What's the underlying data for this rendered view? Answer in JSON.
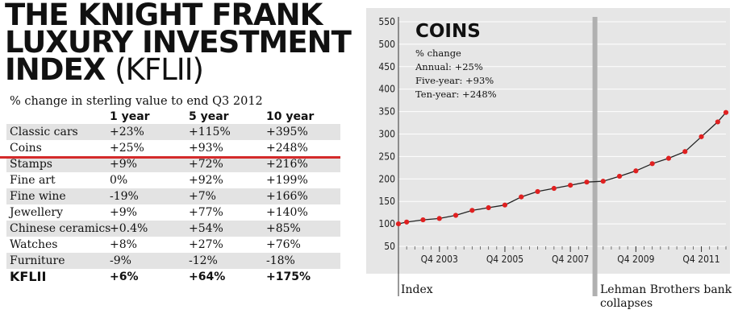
{
  "header": {
    "title_line1": "THE KNIGHT FRANK",
    "title_line2": "LUXURY INVESTMENT",
    "title_line3": "INDEX",
    "title_abbr": "(KFLII)",
    "subtitle": "% change in sterling value to end Q3 2012"
  },
  "table": {
    "columns": [
      "",
      "1 year",
      "5 year",
      "10 year"
    ],
    "rows": [
      {
        "label": "Classic cars",
        "one_year": "+23%",
        "five_year": "+115%",
        "ten_year": "+395%"
      },
      {
        "label": "Coins",
        "one_year": "+25%",
        "five_year": "+93%",
        "ten_year": "+248%"
      },
      {
        "label": "Stamps",
        "one_year": "+9%",
        "five_year": "+72%",
        "ten_year": "+216%"
      },
      {
        "label": "Fine art",
        "one_year": "0%",
        "five_year": "+92%",
        "ten_year": "+199%"
      },
      {
        "label": "Fine wine",
        "one_year": "-19%",
        "five_year": "+7%",
        "ten_year": "+166%"
      },
      {
        "label": "Jewellery",
        "one_year": "+9%",
        "five_year": "+77%",
        "ten_year": "+140%"
      },
      {
        "label": "Chinese ceramics",
        "one_year": "+0.4%",
        "five_year": "+54%",
        "ten_year": "+85%"
      },
      {
        "label": "Watches",
        "one_year": "+8%",
        "five_year": "+27%",
        "ten_year": "+76%"
      },
      {
        "label": "Furniture",
        "one_year": "-9%",
        "five_year": "-12%",
        "ten_year": "-18%"
      },
      {
        "label": "KFLII",
        "one_year": "+6%",
        "five_year": "+64%",
        "ten_year": "+175%"
      }
    ]
  },
  "colors": {
    "highlight": "#d42a2a",
    "marker": "#e02020",
    "line": "#222222",
    "panel": "#e6e6e6",
    "row_shade": "#e3e3e3",
    "grid": "#ffffff",
    "lehman_bar": "#b0b0b0"
  },
  "chart_data": {
    "type": "line",
    "title": "COINS",
    "notes": [
      "% change",
      "Annual: +25%",
      "Five-year: +93%",
      "Ten-year: +248%"
    ],
    "x_tick_labels": [
      "Q4 2003",
      "Q4 2005",
      "Q4 2007",
      "Q4 2009",
      "Q4 2011"
    ],
    "x_tick_positions": [
      5,
      13,
      21,
      29,
      37
    ],
    "x_range": [
      0,
      40
    ],
    "ylim": [
      50,
      550
    ],
    "yticks": [
      50,
      100,
      150,
      200,
      250,
      300,
      350,
      400,
      450,
      500,
      550
    ],
    "grid": true,
    "series": [
      {
        "x": [
          0,
          1,
          3,
          5,
          7,
          9,
          11,
          13,
          15,
          17,
          19,
          21,
          23,
          25,
          27,
          29,
          31,
          33,
          35,
          37,
          39,
          40
        ],
        "values": [
          100,
          104,
          109,
          112,
          119,
          130,
          136,
          142,
          160,
          172,
          179,
          186,
          193,
          195,
          206,
          218,
          234,
          246,
          261,
          294,
          327,
          348
        ]
      }
    ],
    "annotations": [
      {
        "label": "Index",
        "x": 0
      },
      {
        "label_line1": "Lehman Brothers bank",
        "label_line2": "collapses",
        "x": 24
      }
    ]
  }
}
